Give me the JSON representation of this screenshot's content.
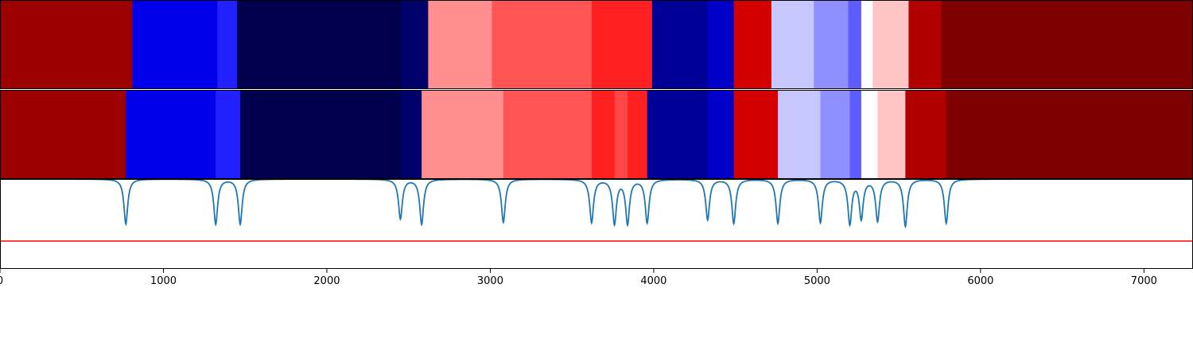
{
  "chart_data": {
    "type": "heatmap",
    "title": "",
    "xlabel": "",
    "ylabel": "",
    "xlim": [
      0,
      7300
    ],
    "x_ticks": [
      0,
      1000,
      2000,
      3000,
      4000,
      5000,
      6000,
      7000
    ],
    "x_tick_labels": [
      "0",
      "1000",
      "2000",
      "3000",
      "4000",
      "5000",
      "6000",
      "7000"
    ],
    "grid": false,
    "legend": "none",
    "colormap": "seismic",
    "rows": [
      {
        "segments": [
          {
            "start": 0,
            "end": 810,
            "color": "#9c0000"
          },
          {
            "start": 810,
            "end": 1330,
            "color": "#0000ea"
          },
          {
            "start": 1330,
            "end": 1450,
            "color": "#2121ff"
          },
          {
            "start": 1450,
            "end": 2450,
            "color": "#00004c"
          },
          {
            "start": 2450,
            "end": 2620,
            "color": "#00006a"
          },
          {
            "start": 2620,
            "end": 3010,
            "color": "#ff8f8f"
          },
          {
            "start": 3010,
            "end": 3620,
            "color": "#ff5555"
          },
          {
            "start": 3620,
            "end": 3990,
            "color": "#ff2121"
          },
          {
            "start": 3990,
            "end": 4330,
            "color": "#000096"
          },
          {
            "start": 4330,
            "end": 4490,
            "color": "#0000c9"
          },
          {
            "start": 4490,
            "end": 4720,
            "color": "#d30000"
          },
          {
            "start": 4720,
            "end": 4980,
            "color": "#c7c7ff"
          },
          {
            "start": 4980,
            "end": 5190,
            "color": "#8f8fff"
          },
          {
            "start": 5190,
            "end": 5270,
            "color": "#5c5cff"
          },
          {
            "start": 5270,
            "end": 5340,
            "color": "#ffffff"
          },
          {
            "start": 5340,
            "end": 5560,
            "color": "#ffc4c4"
          },
          {
            "start": 5560,
            "end": 5760,
            "color": "#b00000"
          },
          {
            "start": 5760,
            "end": 7300,
            "color": "#7f0000"
          }
        ]
      },
      {
        "segments": [
          {
            "start": 0,
            "end": 770,
            "color": "#9c0000"
          },
          {
            "start": 770,
            "end": 1320,
            "color": "#0000ea"
          },
          {
            "start": 1320,
            "end": 1470,
            "color": "#2121ff"
          },
          {
            "start": 1470,
            "end": 2450,
            "color": "#00004c"
          },
          {
            "start": 2450,
            "end": 2580,
            "color": "#00006a"
          },
          {
            "start": 2580,
            "end": 3080,
            "color": "#ff8f8f"
          },
          {
            "start": 3080,
            "end": 3620,
            "color": "#ff5555"
          },
          {
            "start": 3620,
            "end": 3760,
            "color": "#ff2121"
          },
          {
            "start": 3760,
            "end": 3840,
            "color": "#ff4545"
          },
          {
            "start": 3840,
            "end": 3960,
            "color": "#ff2121"
          },
          {
            "start": 3960,
            "end": 4330,
            "color": "#000096"
          },
          {
            "start": 4330,
            "end": 4490,
            "color": "#0000c9"
          },
          {
            "start": 4490,
            "end": 4760,
            "color": "#d30000"
          },
          {
            "start": 4760,
            "end": 5020,
            "color": "#c7c7ff"
          },
          {
            "start": 5020,
            "end": 5200,
            "color": "#8f8fff"
          },
          {
            "start": 5200,
            "end": 5270,
            "color": "#5c5cff"
          },
          {
            "start": 5270,
            "end": 5370,
            "color": "#ffffff"
          },
          {
            "start": 5370,
            "end": 5540,
            "color": "#ffc4c4"
          },
          {
            "start": 5540,
            "end": 5790,
            "color": "#b00000"
          },
          {
            "start": 5790,
            "end": 7300,
            "color": "#7f0000"
          }
        ]
      }
    ],
    "dip_series": {
      "color": "#1f77b4",
      "baseline": 1.0,
      "ylim": [
        0,
        1
      ],
      "dips": [
        {
          "x": 770,
          "depth": 0.5
        },
        {
          "x": 1320,
          "depth": 0.5
        },
        {
          "x": 1470,
          "depth": 0.5
        },
        {
          "x": 2450,
          "depth": 0.44
        },
        {
          "x": 2580,
          "depth": 0.5
        },
        {
          "x": 3080,
          "depth": 0.48
        },
        {
          "x": 3620,
          "depth": 0.48
        },
        {
          "x": 3760,
          "depth": 0.49
        },
        {
          "x": 3840,
          "depth": 0.49
        },
        {
          "x": 3960,
          "depth": 0.48
        },
        {
          "x": 4330,
          "depth": 0.45
        },
        {
          "x": 4490,
          "depth": 0.49
        },
        {
          "x": 4760,
          "depth": 0.49
        },
        {
          "x": 5020,
          "depth": 0.48
        },
        {
          "x": 5200,
          "depth": 0.49
        },
        {
          "x": 5270,
          "depth": 0.43
        },
        {
          "x": 5370,
          "depth": 0.46
        },
        {
          "x": 5540,
          "depth": 0.52
        },
        {
          "x": 5790,
          "depth": 0.49
        }
      ]
    },
    "threshold_line": {
      "y": 0.31,
      "color": "#ff0000"
    }
  }
}
